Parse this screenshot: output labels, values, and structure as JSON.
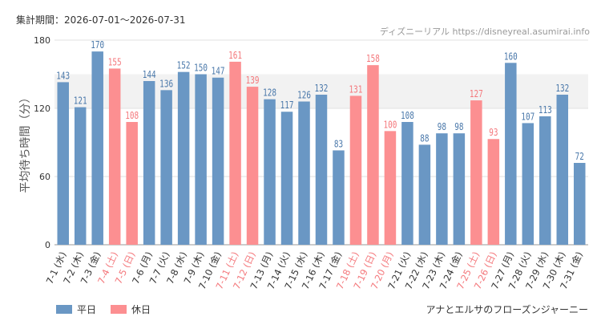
{
  "header": {
    "period_label": "集計期間：2026-07-01～2026-07-31",
    "source": "ディズニーリアル https://disneyreal.asumirai.info"
  },
  "footer": {
    "attraction": "アナとエルサのフローズンジャーニー"
  },
  "legend": {
    "weekday_label": "平日",
    "holiday_label": "休日"
  },
  "colors": {
    "weekday": "#6a97c4",
    "holiday": "#fc8f91",
    "weekday_text": "#4a78aa",
    "holiday_text": "#f4787c",
    "band": "#f2f2f2",
    "grid": "#e2e2e2",
    "axis": "#999999"
  },
  "chart_data": {
    "type": "bar",
    "title": "",
    "xlabel": "",
    "ylabel": "平均待ち時間（分）",
    "ylim": [
      0,
      180
    ],
    "yticks": [
      0,
      60,
      120,
      180
    ],
    "shaded_band": [
      120,
      150
    ],
    "grid": true,
    "legend_position": "bottom-left",
    "categories": [
      "7-1 (水)",
      "7-2 (木)",
      "7-3 (金)",
      "7-4 (土)",
      "7-5 (日)",
      "7-6 (月)",
      "7-7 (火)",
      "7-8 (水)",
      "7-9 (木)",
      "7-10 (金)",
      "7-11 (土)",
      "7-12 (日)",
      "7-13 (月)",
      "7-14 (火)",
      "7-15 (水)",
      "7-16 (木)",
      "7-17 (金)",
      "7-18 (土)",
      "7-19 (日)",
      "7-20 (月)",
      "7-21 (火)",
      "7-22 (水)",
      "7-23 (木)",
      "7-24 (金)",
      "7-25 (土)",
      "7-26 (日)",
      "7-27 (月)",
      "7-28 (火)",
      "7-29 (水)",
      "7-30 (木)",
      "7-31 (金)"
    ],
    "values": [
      143,
      121,
      170,
      155,
      108,
      144,
      136,
      152,
      150,
      147,
      161,
      139,
      128,
      117,
      126,
      132,
      83,
      131,
      158,
      100,
      108,
      88,
      98,
      98,
      127,
      93,
      160,
      107,
      113,
      132,
      72
    ],
    "day_type": [
      "平日",
      "平日",
      "平日",
      "休日",
      "休日",
      "平日",
      "平日",
      "平日",
      "平日",
      "平日",
      "休日",
      "休日",
      "平日",
      "平日",
      "平日",
      "平日",
      "平日",
      "休日",
      "休日",
      "休日",
      "平日",
      "平日",
      "平日",
      "平日",
      "休日",
      "休日",
      "平日",
      "平日",
      "平日",
      "平日",
      "平日"
    ]
  }
}
